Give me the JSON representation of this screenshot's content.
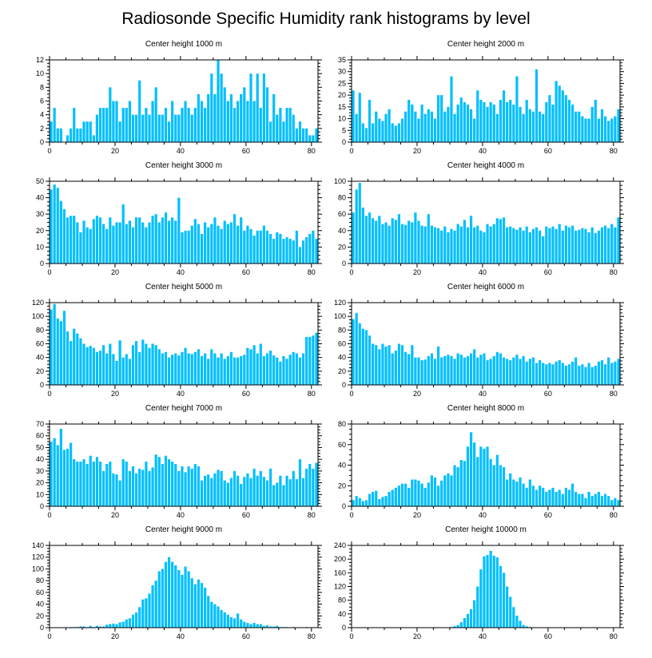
{
  "title": "Radiosonde Specific Humidity rank histograms by level",
  "bar_color": "#00bfff",
  "chart_data": [
    {
      "type": "bar",
      "title": "Center height 1000 m",
      "xlim": [
        0,
        82
      ],
      "ylim": [
        0,
        12
      ],
      "xticks": [
        0,
        20,
        40,
        60,
        80
      ],
      "yticks": [
        0,
        2,
        4,
        6,
        8,
        10,
        12
      ],
      "values": [
        3,
        5,
        2,
        2,
        0,
        1,
        2,
        5,
        2,
        2,
        3,
        3,
        3,
        1,
        4,
        5,
        5,
        5,
        8,
        6,
        6,
        3,
        5,
        5,
        6,
        4,
        4,
        9,
        4,
        5,
        4,
        6,
        8,
        4,
        4,
        5,
        3,
        6,
        4,
        4,
        5,
        6,
        5,
        4,
        5,
        7,
        6,
        5,
        7,
        10,
        7,
        12,
        10,
        8,
        6,
        7,
        5,
        6,
        7,
        8,
        6,
        10,
        6,
        10,
        5,
        10,
        8,
        3,
        7,
        4,
        5,
        3,
        5,
        5,
        4,
        2,
        3,
        2,
        2,
        1,
        1,
        2
      ]
    },
    {
      "type": "bar",
      "title": "Center height 2000 m",
      "xlim": [
        0,
        82
      ],
      "ylim": [
        0,
        35
      ],
      "xticks": [
        0,
        20,
        40,
        60,
        80
      ],
      "yticks": [
        0,
        5,
        10,
        15,
        20,
        25,
        30,
        35
      ],
      "values": [
        22,
        12,
        21,
        8,
        6,
        18,
        8,
        13,
        10,
        9,
        12,
        14,
        8,
        7,
        8,
        10,
        13,
        18,
        16,
        13,
        10,
        16,
        12,
        14,
        13,
        10,
        20,
        20,
        13,
        15,
        28,
        12,
        16,
        19,
        17,
        16,
        14,
        10,
        22,
        18,
        17,
        15,
        17,
        16,
        12,
        18,
        22,
        17,
        18,
        16,
        28,
        15,
        12,
        18,
        14,
        13,
        31,
        13,
        12,
        17,
        20,
        16,
        26,
        24,
        22,
        20,
        18,
        16,
        13,
        13,
        11,
        10,
        10,
        15,
        18,
        10,
        14,
        11,
        9,
        10,
        11,
        14
      ]
    },
    {
      "type": "bar",
      "title": "Center height 3000 m",
      "xlim": [
        0,
        82
      ],
      "ylim": [
        0,
        50
      ],
      "xticks": [
        0,
        20,
        40,
        60,
        80
      ],
      "yticks": [
        0,
        10,
        20,
        30,
        40,
        50
      ],
      "values": [
        45,
        48,
        46,
        38,
        33,
        28,
        29,
        29,
        25,
        19,
        26,
        22,
        21,
        27,
        29,
        28,
        24,
        21,
        28,
        23,
        25,
        25,
        36,
        24,
        26,
        22,
        28,
        28,
        25,
        22,
        25,
        29,
        30,
        25,
        28,
        31,
        26,
        28,
        26,
        40,
        19,
        20,
        20,
        23,
        27,
        24,
        18,
        25,
        22,
        24,
        28,
        23,
        21,
        26,
        24,
        25,
        30,
        23,
        28,
        20,
        23,
        21,
        17,
        20,
        20,
        23,
        20,
        18,
        15,
        19,
        18,
        15,
        16,
        15,
        14,
        20,
        10,
        14,
        16,
        18,
        20,
        15
      ]
    },
    {
      "type": "bar",
      "title": "Center height 4000 m",
      "xlim": [
        0,
        82
      ],
      "ylim": [
        0,
        100
      ],
      "xticks": [
        0,
        20,
        40,
        60,
        80
      ],
      "yticks": [
        0,
        20,
        40,
        60,
        80,
        100
      ],
      "values": [
        62,
        90,
        98,
        68,
        58,
        62,
        55,
        52,
        58,
        48,
        50,
        46,
        55,
        53,
        60,
        48,
        47,
        52,
        50,
        62,
        52,
        46,
        45,
        60,
        46,
        44,
        43,
        40,
        45,
        38,
        42,
        40,
        48,
        45,
        53,
        44,
        58,
        44,
        46,
        40,
        38,
        48,
        45,
        48,
        55,
        54,
        56,
        44,
        45,
        43,
        41,
        44,
        40,
        45,
        38,
        42,
        44,
        40,
        33,
        45,
        43,
        45,
        42,
        48,
        40,
        46,
        44,
        46,
        40,
        41,
        43,
        42,
        38,
        44,
        37,
        40,
        44,
        46,
        43,
        48,
        44,
        56
      ]
    },
    {
      "type": "bar",
      "title": "Center height 5000 m",
      "xlim": [
        0,
        82
      ],
      "ylim": [
        0,
        120
      ],
      "xticks": [
        0,
        20,
        40,
        60,
        80
      ],
      "yticks": [
        0,
        20,
        40,
        60,
        80,
        100,
        120
      ],
      "values": [
        110,
        118,
        97,
        93,
        108,
        78,
        64,
        82,
        75,
        68,
        60,
        55,
        57,
        54,
        48,
        50,
        58,
        46,
        60,
        45,
        35,
        65,
        40,
        45,
        38,
        58,
        64,
        48,
        66,
        60,
        54,
        60,
        58,
        52,
        46,
        48,
        40,
        44,
        46,
        43,
        48,
        54,
        46,
        45,
        48,
        52,
        42,
        46,
        38,
        52,
        46,
        40,
        46,
        38,
        42,
        48,
        40,
        40,
        42,
        44,
        54,
        52,
        58,
        46,
        60,
        42,
        46,
        50,
        43,
        40,
        34,
        42,
        38,
        44,
        48,
        46,
        40,
        46,
        70,
        70,
        72,
        76
      ]
    },
    {
      "type": "bar",
      "title": "Center height 6000 m",
      "xlim": [
        0,
        82
      ],
      "ylim": [
        0,
        120
      ],
      "xticks": [
        0,
        20,
        40,
        60,
        80
      ],
      "yticks": [
        0,
        20,
        40,
        60,
        80,
        100,
        120
      ],
      "values": [
        96,
        105,
        90,
        82,
        80,
        72,
        60,
        58,
        52,
        60,
        56,
        58,
        46,
        50,
        60,
        58,
        48,
        45,
        58,
        40,
        40,
        36,
        37,
        42,
        46,
        38,
        56,
        40,
        42,
        44,
        42,
        38,
        46,
        44,
        40,
        42,
        46,
        52,
        40,
        44,
        46,
        36,
        38,
        42,
        48,
        46,
        40,
        38,
        36,
        40,
        44,
        38,
        42,
        34,
        38,
        40,
        32,
        36,
        32,
        30,
        32,
        30,
        34,
        36,
        32,
        28,
        30,
        34,
        40,
        28,
        30,
        26,
        32,
        26,
        28,
        34,
        36,
        30,
        40,
        32,
        34,
        38
      ]
    },
    {
      "type": "bar",
      "title": "Center height 7000 m",
      "xlim": [
        0,
        82
      ],
      "ylim": [
        0,
        70
      ],
      "xticks": [
        0,
        20,
        40,
        60,
        80
      ],
      "yticks": [
        0,
        10,
        20,
        30,
        40,
        50,
        60,
        70
      ],
      "values": [
        55,
        58,
        52,
        66,
        48,
        49,
        54,
        40,
        38,
        38,
        40,
        36,
        43,
        38,
        42,
        38,
        30,
        36,
        38,
        28,
        27,
        22,
        40,
        38,
        30,
        34,
        28,
        32,
        31,
        38,
        30,
        33,
        44,
        42,
        36,
        43,
        40,
        38,
        36,
        30,
        34,
        29,
        34,
        32,
        36,
        34,
        22,
        26,
        27,
        24,
        28,
        31,
        30,
        22,
        20,
        24,
        30,
        26,
        19,
        25,
        28,
        24,
        32,
        26,
        30,
        25,
        22,
        32,
        18,
        20,
        26,
        18,
        26,
        23,
        30,
        23,
        40,
        24,
        32,
        36,
        32,
        37
      ]
    },
    {
      "type": "bar",
      "title": "Center height 8000 m",
      "xlim": [
        0,
        82
      ],
      "ylim": [
        0,
        80
      ],
      "xticks": [
        0,
        20,
        40,
        60,
        80
      ],
      "yticks": [
        0,
        20,
        40,
        60,
        80
      ],
      "values": [
        6,
        10,
        8,
        5,
        6,
        12,
        14,
        15,
        7,
        9,
        10,
        14,
        16,
        18,
        20,
        22,
        22,
        18,
        26,
        26,
        25,
        22,
        18,
        23,
        30,
        28,
        20,
        25,
        30,
        32,
        30,
        40,
        38,
        45,
        44,
        58,
        72,
        62,
        48,
        58,
        56,
        58,
        46,
        40,
        50,
        40,
        38,
        26,
        32,
        26,
        24,
        28,
        22,
        18,
        26,
        20,
        16,
        20,
        18,
        14,
        16,
        18,
        14,
        16,
        12,
        18,
        16,
        22,
        14,
        12,
        12,
        8,
        14,
        10,
        12,
        14,
        10,
        12,
        10,
        6,
        8,
        6
      ]
    },
    {
      "type": "bar",
      "title": "Center height 9000 m",
      "xlim": [
        0,
        82
      ],
      "ylim": [
        0,
        140
      ],
      "xticks": [
        0,
        20,
        40,
        60,
        80
      ],
      "yticks": [
        0,
        20,
        40,
        60,
        80,
        100,
        120,
        140
      ],
      "values": [
        0,
        0,
        0,
        0,
        0,
        0,
        1,
        1,
        1,
        2,
        2,
        1,
        3,
        1,
        3,
        2,
        2,
        5,
        6,
        7,
        6,
        9,
        10,
        14,
        16,
        22,
        26,
        35,
        48,
        50,
        58,
        72,
        80,
        96,
        100,
        112,
        120,
        112,
        106,
        98,
        90,
        104,
        96,
        84,
        74,
        82,
        76,
        68,
        54,
        44,
        40,
        36,
        30,
        26,
        22,
        18,
        16,
        24,
        14,
        10,
        8,
        6,
        8,
        6,
        6,
        3,
        4,
        2,
        2,
        3,
        1,
        1,
        1,
        0,
        1,
        0,
        0,
        0,
        1,
        0,
        0,
        0
      ]
    },
    {
      "type": "bar",
      "title": "Center height 10000 m",
      "xlim": [
        0,
        82
      ],
      "ylim": [
        0,
        240
      ],
      "xticks": [
        0,
        20,
        40,
        60,
        80
      ],
      "yticks": [
        0,
        40,
        80,
        120,
        160,
        200,
        240
      ],
      "values": [
        0,
        0,
        0,
        0,
        0,
        0,
        0,
        0,
        0,
        0,
        0,
        0,
        0,
        0,
        0,
        0,
        0,
        0,
        0,
        0,
        0,
        0,
        0,
        0,
        0,
        0,
        0,
        0,
        1,
        1,
        2,
        4,
        8,
        16,
        28,
        40,
        54,
        80,
        120,
        170,
        208,
        212,
        224,
        210,
        205,
        180,
        160,
        120,
        90,
        60,
        35,
        20,
        8,
        4,
        2,
        1,
        1,
        1,
        0,
        0,
        1,
        0,
        0,
        0,
        0,
        0,
        0,
        0,
        0,
        0,
        0,
        0,
        0,
        0,
        0,
        0,
        0,
        0,
        0,
        0,
        0,
        0
      ]
    }
  ]
}
